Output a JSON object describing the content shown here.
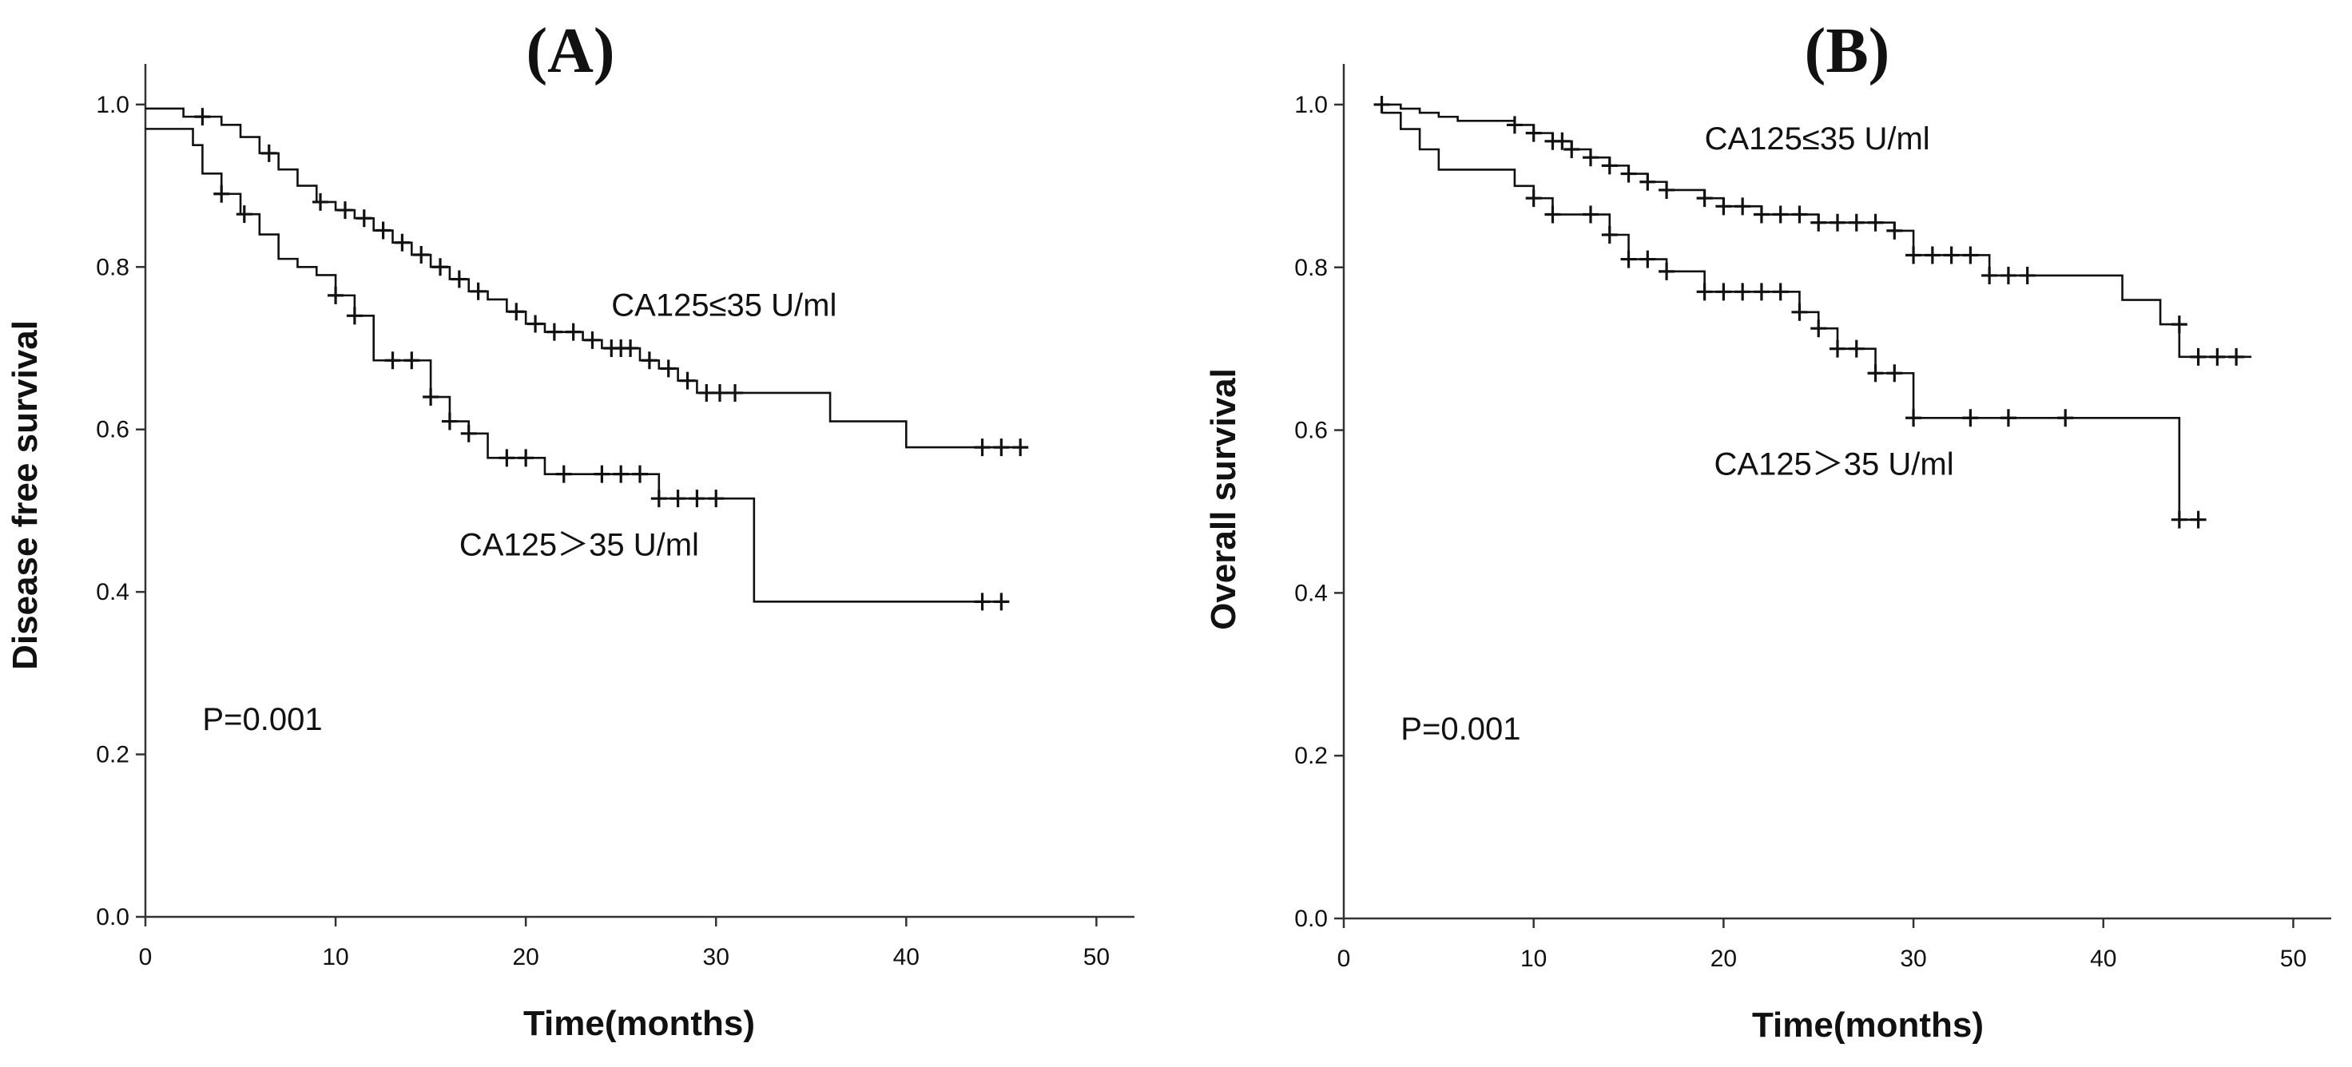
{
  "chart_data": [
    {
      "type": "line",
      "subtype": "kaplan-meier",
      "title": "(A)",
      "xlabel": "Time(months)",
      "ylabel": "Disease free survival",
      "xlim": [
        0,
        52
      ],
      "ylim": [
        0,
        1.05
      ],
      "xticks": [
        0,
        10,
        20,
        30,
        40,
        50
      ],
      "xtick_labels": [
        "0",
        "10",
        "20",
        "30",
        "40",
        "50"
      ],
      "yticks": [
        0,
        0.2,
        0.4,
        0.6,
        0.8,
        1.0
      ],
      "ytick_labels": [
        "0.0",
        "0.2",
        "0.4",
        "0.6",
        "0.8",
        "1.0"
      ],
      "annotations": [
        {
          "text": "P=0.001",
          "x": 3,
          "y": 0.23
        },
        {
          "text": "CA125≤35 U/ml",
          "x": 24.5,
          "y": 0.74
        },
        {
          "text": "CA125＞35 U/ml",
          "x": 16.5,
          "y": 0.445
        }
      ],
      "series": [
        {
          "name": "CA125≤35 U/ml",
          "steps": [
            [
              0,
              0.995
            ],
            [
              2,
              0.985
            ],
            [
              4,
              0.975
            ],
            [
              5,
              0.96
            ],
            [
              6,
              0.94
            ],
            [
              7,
              0.92
            ],
            [
              8,
              0.9
            ],
            [
              9,
              0.88
            ],
            [
              10,
              0.87
            ],
            [
              11,
              0.86
            ],
            [
              12,
              0.845
            ],
            [
              13,
              0.83
            ],
            [
              14,
              0.815
            ],
            [
              15,
              0.8
            ],
            [
              16,
              0.785
            ],
            [
              17,
              0.77
            ],
            [
              18,
              0.76
            ],
            [
              19,
              0.745
            ],
            [
              20,
              0.73
            ],
            [
              21,
              0.72
            ],
            [
              23,
              0.71
            ],
            [
              24,
              0.7
            ],
            [
              26,
              0.685
            ],
            [
              27,
              0.675
            ],
            [
              28,
              0.66
            ],
            [
              29,
              0.645
            ],
            [
              36,
              0.61
            ],
            [
              40,
              0.578
            ]
          ],
          "end": 46.3,
          "censored": [
            [
              3,
              0.985
            ],
            [
              6.5,
              0.94
            ],
            [
              9.2,
              0.88
            ],
            [
              10.5,
              0.87
            ],
            [
              11.5,
              0.86
            ],
            [
              12.5,
              0.845
            ],
            [
              13.5,
              0.83
            ],
            [
              14.5,
              0.815
            ],
            [
              15.5,
              0.8
            ],
            [
              16.5,
              0.785
            ],
            [
              17.5,
              0.77
            ],
            [
              19.5,
              0.745
            ],
            [
              20.5,
              0.73
            ],
            [
              21.5,
              0.72
            ],
            [
              22.5,
              0.72
            ],
            [
              23.5,
              0.71
            ],
            [
              24.5,
              0.7
            ],
            [
              25,
              0.7
            ],
            [
              25.5,
              0.7
            ],
            [
              26.5,
              0.685
            ],
            [
              27.5,
              0.675
            ],
            [
              28.5,
              0.66
            ],
            [
              29.5,
              0.645
            ],
            [
              30.2,
              0.645
            ],
            [
              31,
              0.645
            ],
            [
              44,
              0.578
            ],
            [
              45,
              0.578
            ],
            [
              46,
              0.578
            ]
          ]
        },
        {
          "name": "CA125＞35 U/ml",
          "steps": [
            [
              0,
              0.97
            ],
            [
              2.5,
              0.95
            ],
            [
              3,
              0.915
            ],
            [
              4,
              0.89
            ],
            [
              5,
              0.865
            ],
            [
              6,
              0.84
            ],
            [
              7,
              0.81
            ],
            [
              8,
              0.8
            ],
            [
              9,
              0.79
            ],
            [
              10,
              0.765
            ],
            [
              11,
              0.74
            ],
            [
              12,
              0.685
            ],
            [
              15,
              0.64
            ],
            [
              16,
              0.61
            ],
            [
              17,
              0.595
            ],
            [
              18,
              0.565
            ],
            [
              21,
              0.545
            ],
            [
              27,
              0.515
            ],
            [
              32,
              0.388
            ]
          ],
          "end": 45.2,
          "censored": [
            [
              4,
              0.89
            ],
            [
              5.2,
              0.865
            ],
            [
              10,
              0.765
            ],
            [
              11,
              0.74
            ],
            [
              13,
              0.685
            ],
            [
              14,
              0.685
            ],
            [
              15,
              0.64
            ],
            [
              16,
              0.61
            ],
            [
              17,
              0.595
            ],
            [
              19,
              0.565
            ],
            [
              20,
              0.565
            ],
            [
              22,
              0.545
            ],
            [
              24,
              0.545
            ],
            [
              25,
              0.545
            ],
            [
              26,
              0.545
            ],
            [
              27,
              0.515
            ],
            [
              28,
              0.515
            ],
            [
              29,
              0.515
            ],
            [
              30,
              0.515
            ],
            [
              44,
              0.388
            ],
            [
              45,
              0.388
            ]
          ]
        }
      ]
    },
    {
      "type": "line",
      "subtype": "kaplan-meier",
      "title": "(B)",
      "xlabel": "Time(months)",
      "ylabel": "Overall survival",
      "xlim": [
        0,
        52
      ],
      "ylim": [
        0,
        1.05
      ],
      "xticks": [
        0,
        10,
        20,
        30,
        40,
        50
      ],
      "xtick_labels": [
        "0",
        "10",
        "20",
        "30",
        "40",
        "50"
      ],
      "yticks": [
        0,
        0.2,
        0.4,
        0.6,
        0.8,
        1.0
      ],
      "ytick_labels": [
        "0.0",
        "0.2",
        "0.4",
        "0.6",
        "0.8",
        "1.0"
      ],
      "annotations": [
        {
          "text": "P=0.001",
          "x": 3,
          "y": 0.22
        },
        {
          "text": "CA125≤35 U/ml",
          "x": 19,
          "y": 0.945
        },
        {
          "text": "CA125＞35 U/ml",
          "x": 19.5,
          "y": 0.545
        }
      ],
      "series": [
        {
          "name": "CA125≤35 U/ml",
          "steps": [
            [
              2,
              1.0
            ],
            [
              3,
              0.995
            ],
            [
              4,
              0.99
            ],
            [
              5,
              0.985
            ],
            [
              6,
              0.98
            ],
            [
              9,
              0.975
            ],
            [
              10,
              0.965
            ],
            [
              11,
              0.955
            ],
            [
              12,
              0.945
            ],
            [
              13,
              0.935
            ],
            [
              14,
              0.925
            ],
            [
              15,
              0.915
            ],
            [
              16,
              0.905
            ],
            [
              17,
              0.895
            ],
            [
              19,
              0.885
            ],
            [
              20,
              0.875
            ],
            [
              22,
              0.865
            ],
            [
              25,
              0.855
            ],
            [
              29,
              0.845
            ],
            [
              30,
              0.815
            ],
            [
              34,
              0.79
            ],
            [
              41,
              0.76
            ],
            [
              43,
              0.73
            ],
            [
              44,
              0.69
            ]
          ],
          "end": 47.8,
          "censored": [
            [
              2,
              1.0
            ],
            [
              9,
              0.975
            ],
            [
              10,
              0.965
            ],
            [
              11,
              0.955
            ],
            [
              11.5,
              0.955
            ],
            [
              12,
              0.945
            ],
            [
              13,
              0.935
            ],
            [
              14,
              0.925
            ],
            [
              15,
              0.915
            ],
            [
              16,
              0.905
            ],
            [
              17,
              0.895
            ],
            [
              19,
              0.885
            ],
            [
              20,
              0.875
            ],
            [
              21,
              0.875
            ],
            [
              22,
              0.865
            ],
            [
              23,
              0.865
            ],
            [
              24,
              0.865
            ],
            [
              25,
              0.855
            ],
            [
              26,
              0.855
            ],
            [
              27,
              0.855
            ],
            [
              28,
              0.855
            ],
            [
              29,
              0.845
            ],
            [
              30,
              0.815
            ],
            [
              31,
              0.815
            ],
            [
              32,
              0.815
            ],
            [
              33,
              0.815
            ],
            [
              34,
              0.79
            ],
            [
              35,
              0.79
            ],
            [
              36,
              0.79
            ],
            [
              44,
              0.73
            ],
            [
              45,
              0.69
            ],
            [
              46,
              0.69
            ],
            [
              47,
              0.69
            ]
          ]
        },
        {
          "name": "CA125＞35 U/ml",
          "steps": [
            [
              2,
              0.99
            ],
            [
              3,
              0.97
            ],
            [
              4,
              0.945
            ],
            [
              5,
              0.92
            ],
            [
              9,
              0.9
            ],
            [
              10,
              0.885
            ],
            [
              11,
              0.865
            ],
            [
              14,
              0.84
            ],
            [
              15,
              0.81
            ],
            [
              17,
              0.795
            ],
            [
              19,
              0.77
            ],
            [
              24,
              0.745
            ],
            [
              25,
              0.725
            ],
            [
              26,
              0.7
            ],
            [
              28,
              0.67
            ],
            [
              30,
              0.615
            ],
            [
              44,
              0.49
            ]
          ],
          "end": 45.2,
          "censored": [
            [
              10,
              0.885
            ],
            [
              11,
              0.865
            ],
            [
              13,
              0.865
            ],
            [
              14,
              0.84
            ],
            [
              15,
              0.81
            ],
            [
              16,
              0.81
            ],
            [
              17,
              0.795
            ],
            [
              19,
              0.77
            ],
            [
              20,
              0.77
            ],
            [
              21,
              0.77
            ],
            [
              22,
              0.77
            ],
            [
              23,
              0.77
            ],
            [
              24,
              0.745
            ],
            [
              25,
              0.725
            ],
            [
              26,
              0.7
            ],
            [
              27,
              0.7
            ],
            [
              28,
              0.67
            ],
            [
              29,
              0.67
            ],
            [
              30,
              0.615
            ],
            [
              33,
              0.615
            ],
            [
              35,
              0.615
            ],
            [
              38,
              0.615
            ],
            [
              44,
              0.49
            ],
            [
              45,
              0.49
            ]
          ]
        }
      ]
    }
  ]
}
